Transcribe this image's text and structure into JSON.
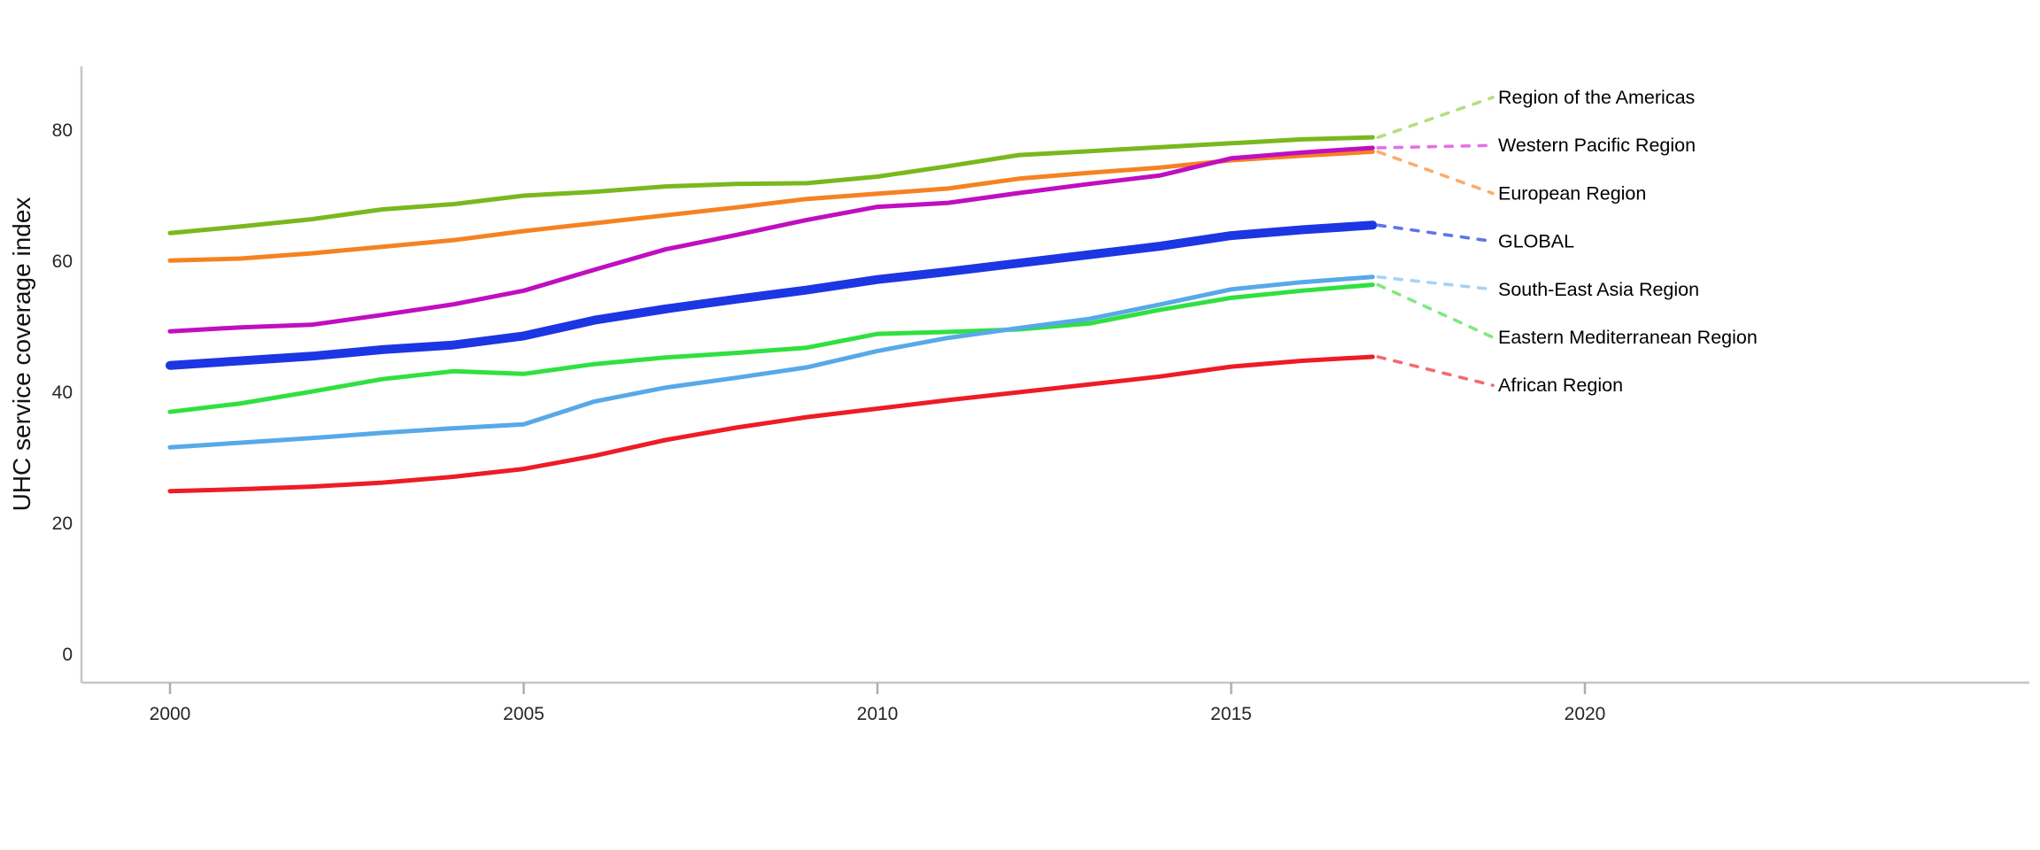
{
  "chart_data": {
    "type": "line",
    "title": "",
    "xlabel": "",
    "ylabel": "UHC service coverage index",
    "x": [
      2000,
      2001,
      2002,
      2003,
      2004,
      2005,
      2006,
      2007,
      2008,
      2009,
      2010,
      2011,
      2012,
      2013,
      2014,
      2015,
      2016,
      2017
    ],
    "x_ticks": [
      "2000",
      "2005",
      "2010",
      "2015",
      "2020"
    ],
    "x_tick_years": [
      2000,
      2005,
      2010,
      2015,
      2020
    ],
    "y_ticks": [
      "0",
      "20",
      "40",
      "60",
      "80"
    ],
    "y_tick_values": [
      0,
      20,
      40,
      60,
      80
    ],
    "xlim": [
      1998.7,
      2026.3
    ],
    "ylim": [
      0,
      92
    ],
    "grid": false,
    "legend_position": "right-labels-with-dashed-leaders",
    "axis_color": "#c6c6c6",
    "tick_color": "#aeaeae",
    "series": [
      {
        "name": "Region of the Americas",
        "color": "#79b81e",
        "leader_color": "#b8dc80",
        "line_width": 5,
        "values": [
          64.3,
          65.3,
          66.4,
          67.9,
          68.7,
          70.0,
          70.6,
          71.4,
          71.8,
          71.9,
          72.9,
          74.5,
          76.2,
          76.8,
          77.4,
          78.0,
          78.6,
          78.9
        ]
      },
      {
        "name": "Western Pacific Region",
        "color": "#c00ec0",
        "leader_color": "#e571e5",
        "line_width": 5,
        "values": [
          49.3,
          49.9,
          50.3,
          51.8,
          53.4,
          55.5,
          58.7,
          61.8,
          64.0,
          66.3,
          68.3,
          68.9,
          70.4,
          71.8,
          73.1,
          75.7,
          76.6,
          77.3
        ]
      },
      {
        "name": "European Region",
        "color": "#f58222",
        "leader_color": "#f8ad6d",
        "line_width": 5,
        "values": [
          60.1,
          60.4,
          61.2,
          62.2,
          63.2,
          64.6,
          65.8,
          67.0,
          68.2,
          69.5,
          70.3,
          71.1,
          72.6,
          73.5,
          74.3,
          75.4,
          76.1,
          76.7
        ]
      },
      {
        "name": "GLOBAL",
        "color": "#1c36e3",
        "leader_color": "#6075e8",
        "line_width": 10,
        "values": [
          44.1,
          44.8,
          45.5,
          46.5,
          47.2,
          48.6,
          51.0,
          52.7,
          54.2,
          55.6,
          57.2,
          58.4,
          59.7,
          61.0,
          62.3,
          63.9,
          64.8,
          65.5
        ]
      },
      {
        "name": "South-East Asia Region",
        "color": "#57a9e8",
        "leader_color": "#a6d3f4",
        "line_width": 5,
        "values": [
          31.6,
          32.3,
          33.0,
          33.8,
          34.5,
          35.1,
          38.6,
          40.7,
          42.2,
          43.8,
          46.3,
          48.3,
          49.8,
          51.2,
          53.4,
          55.7,
          56.8,
          57.6
        ]
      },
      {
        "name": "Eastern Mediterranean Region",
        "color": "#30e040",
        "leader_color": "#80e880",
        "line_width": 5,
        "values": [
          37.0,
          38.3,
          40.1,
          42.0,
          43.2,
          42.8,
          44.3,
          45.3,
          46.0,
          46.8,
          48.9,
          49.2,
          49.6,
          50.5,
          52.6,
          54.4,
          55.5,
          56.4
        ]
      },
      {
        "name": "African Region",
        "color": "#ed1c25",
        "leader_color": "#f16a70",
        "line_width": 5,
        "values": [
          24.9,
          25.2,
          25.6,
          26.2,
          27.1,
          28.3,
          30.3,
          32.7,
          34.6,
          36.2,
          37.5,
          38.8,
          40.0,
          41.2,
          42.4,
          43.9,
          44.8,
          45.4
        ]
      }
    ],
    "legend_order": [
      "Region of the Americas",
      "Western Pacific Region",
      "European Region",
      "GLOBAL",
      "South-East Asia Region",
      "Eastern Mediterranean Region",
      "African Region"
    ],
    "draw_order": [
      "Region of the Americas",
      "European Region",
      "Western Pacific Region",
      "GLOBAL",
      "Eastern Mediterranean Region",
      "South-East Asia Region",
      "African Region"
    ]
  }
}
